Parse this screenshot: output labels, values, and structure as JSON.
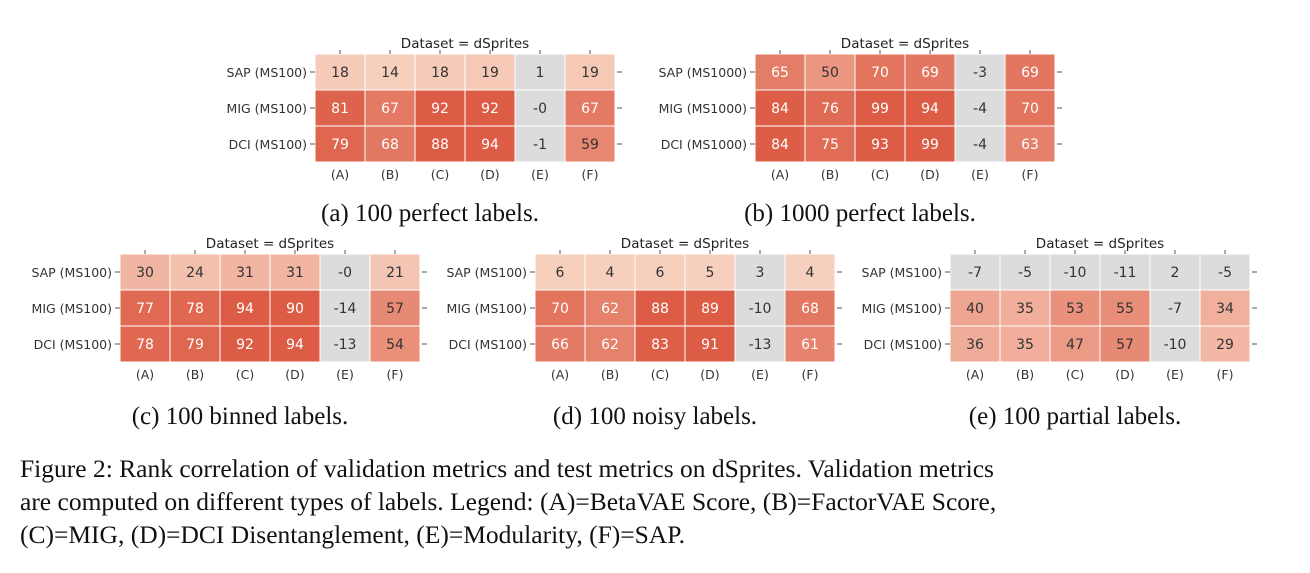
{
  "figure": {
    "caption_lines": [
      "Figure 2: Rank correlation of validation metrics and test metrics on dSprites. Validation metrics",
      "are computed on different types of labels. Legend: (A)=BetaVAE Score, (B)=FactorVAE Score,",
      "(C)=MIG, (D)=DCI Disentanglement, (E)=Modularity, (F)=SAP."
    ]
  },
  "panels": [
    {
      "caption": "(a) 100 perfect labels."
    },
    {
      "caption": "(b) 1000 perfect labels."
    },
    {
      "caption": "(c) 100 binned labels."
    },
    {
      "caption": "(d) 100 noisy labels."
    },
    {
      "caption": "(e) 100 partial labels."
    }
  ],
  "colors": {
    "positive_high": "#dd5c45",
    "positive_low": "#f7cfbd",
    "negative": "#dcdcdc",
    "cell_border": "#ffffff",
    "text_dark": "#333333",
    "text_light": "#ffffff"
  },
  "chart_data": [
    {
      "type": "heatmap",
      "title": "Dataset = dSprites",
      "x": [
        "(A)",
        "(B)",
        "(C)",
        "(D)",
        "(E)",
        "(F)"
      ],
      "y": [
        "SAP (MS100)",
        "MIG (MS100)",
        "DCI (MS100)"
      ],
      "values": [
        [
          18,
          14,
          18,
          19,
          1,
          19
        ],
        [
          81,
          67,
          92,
          92,
          0,
          67
        ],
        [
          79,
          68,
          88,
          94,
          -1,
          59
        ]
      ],
      "labels": [
        [
          "18",
          "14",
          "18",
          "19",
          "1",
          "19"
        ],
        [
          "81",
          "67",
          "92",
          "92",
          "-0",
          "67"
        ],
        [
          "79",
          "68",
          "88",
          "94",
          "-1",
          "59"
        ]
      ]
    },
    {
      "type": "heatmap",
      "title": "Dataset = dSprites",
      "x": [
        "(A)",
        "(B)",
        "(C)",
        "(D)",
        "(E)",
        "(F)"
      ],
      "y": [
        "SAP (MS1000)",
        "MIG (MS1000)",
        "DCI (MS1000)"
      ],
      "values": [
        [
          65,
          50,
          70,
          69,
          -3,
          69
        ],
        [
          84,
          76,
          99,
          94,
          -4,
          70
        ],
        [
          84,
          75,
          93,
          99,
          -4,
          63
        ]
      ],
      "labels": [
        [
          "65",
          "50",
          "70",
          "69",
          "-3",
          "69"
        ],
        [
          "84",
          "76",
          "99",
          "94",
          "-4",
          "70"
        ],
        [
          "84",
          "75",
          "93",
          "99",
          "-4",
          "63"
        ]
      ]
    },
    {
      "type": "heatmap",
      "title": "Dataset = dSprites",
      "x": [
        "(A)",
        "(B)",
        "(C)",
        "(D)",
        "(E)",
        "(F)"
      ],
      "y": [
        "SAP (MS100)",
        "MIG (MS100)",
        "DCI (MS100)"
      ],
      "values": [
        [
          30,
          24,
          31,
          31,
          0,
          21
        ],
        [
          77,
          78,
          94,
          90,
          -14,
          57
        ],
        [
          78,
          79,
          92,
          94,
          -13,
          54
        ]
      ],
      "labels": [
        [
          "30",
          "24",
          "31",
          "31",
          "-0",
          "21"
        ],
        [
          "77",
          "78",
          "94",
          "90",
          "-14",
          "57"
        ],
        [
          "78",
          "79",
          "92",
          "94",
          "-13",
          "54"
        ]
      ]
    },
    {
      "type": "heatmap",
      "title": "Dataset = dSprites",
      "x": [
        "(A)",
        "(B)",
        "(C)",
        "(D)",
        "(E)",
        "(F)"
      ],
      "y": [
        "SAP (MS100)",
        "MIG (MS100)",
        "DCI (MS100)"
      ],
      "values": [
        [
          6,
          4,
          6,
          5,
          3,
          4
        ],
        [
          70,
          62,
          88,
          89,
          -10,
          68
        ],
        [
          66,
          62,
          83,
          91,
          -13,
          61
        ]
      ],
      "labels": [
        [
          "6",
          "4",
          "6",
          "5",
          "3",
          "4"
        ],
        [
          "70",
          "62",
          "88",
          "89",
          "-10",
          "68"
        ],
        [
          "66",
          "62",
          "83",
          "91",
          "-13",
          "61"
        ]
      ]
    },
    {
      "type": "heatmap",
      "title": "Dataset = dSprites",
      "x": [
        "(A)",
        "(B)",
        "(C)",
        "(D)",
        "(E)",
        "(F)"
      ],
      "y": [
        "SAP (MS100)",
        "MIG (MS100)",
        "DCI (MS100)"
      ],
      "values": [
        [
          -7,
          -5,
          -10,
          -11,
          2,
          -5
        ],
        [
          40,
          35,
          53,
          55,
          -7,
          34
        ],
        [
          36,
          35,
          47,
          57,
          -10,
          29
        ]
      ],
      "labels": [
        [
          "-7",
          "-5",
          "-10",
          "-11",
          "2",
          "-5"
        ],
        [
          "40",
          "35",
          "53",
          "55",
          "-7",
          "34"
        ],
        [
          "36",
          "35",
          "47",
          "57",
          "-10",
          "29"
        ]
      ]
    }
  ]
}
